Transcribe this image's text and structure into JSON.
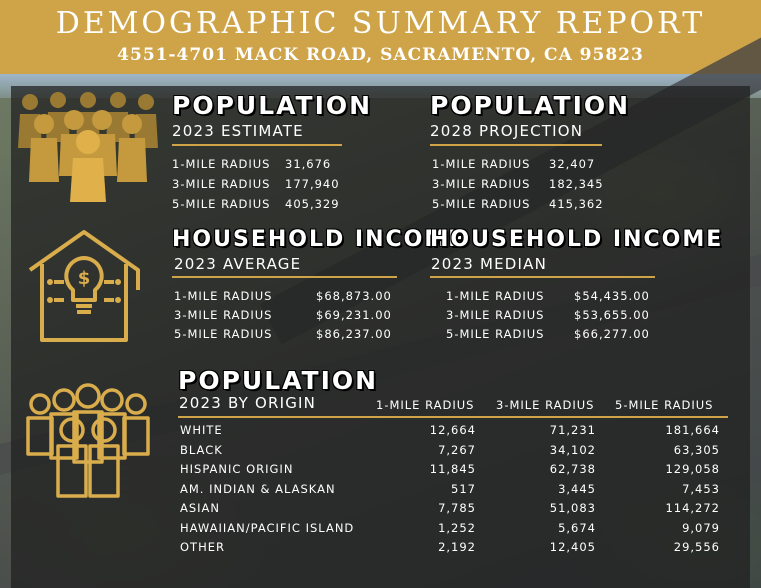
{
  "header": {
    "title": "DEMOGRAPHIC SUMMARY REPORT",
    "address": "4551-4701 MACK ROAD, SACRAMENTO, CA 95823"
  },
  "colors": {
    "accent": "#cfa449",
    "panel": "#1e1e1e",
    "text": "#ffffff"
  },
  "population_estimate": {
    "title": "POPULATION",
    "subtitle": "2023 ESTIMATE",
    "rows": [
      {
        "label": "1-MILE RADIUS",
        "value": "31,676"
      },
      {
        "label": "3-MILE RADIUS",
        "value": "177,940"
      },
      {
        "label": "5-MILE RADIUS",
        "value": "405,329"
      }
    ]
  },
  "population_projection": {
    "title": "POPULATION",
    "subtitle": "2028 PROJECTION",
    "rows": [
      {
        "label": "1-MILE RADIUS",
        "value": "32,407"
      },
      {
        "label": "3-MILE RADIUS",
        "value": "182,345"
      },
      {
        "label": "5-MILE RADIUS",
        "value": "415,362"
      }
    ]
  },
  "income_average": {
    "title": "HOUSEHOLD INCOME",
    "subtitle": "2023 AVERAGE",
    "rows": [
      {
        "label": "1-MILE RADIUS",
        "value": "$68,873.00"
      },
      {
        "label": "3-MILE RADIUS",
        "value": "$69,231.00"
      },
      {
        "label": "5-MILE RADIUS",
        "value": "$86,237.00"
      }
    ]
  },
  "income_median": {
    "title": "HOUSEHOLD INCOME",
    "subtitle": "2023 MEDIAN",
    "rows": [
      {
        "label": "1-MILE RADIUS",
        "value": "$54,435.00"
      },
      {
        "label": "3-MILE RADIUS",
        "value": "$53,655.00"
      },
      {
        "label": "5-MILE RADIUS",
        "value": "$66,277.00"
      }
    ]
  },
  "origin": {
    "title": "POPULATION",
    "subtitle": "2023 BY ORIGIN",
    "columns": [
      "1-MILE RADIUS",
      "3-MILE RADIUS",
      "5-MILE RADIUS"
    ],
    "rows": [
      {
        "label": "WHITE",
        "values": [
          "12,664",
          "71,231",
          "181,664"
        ]
      },
      {
        "label": "BLACK",
        "values": [
          "7,267",
          "34,102",
          "63,305"
        ]
      },
      {
        "label": "HISPANIC ORIGIN",
        "values": [
          "11,845",
          "62,738",
          "129,058"
        ]
      },
      {
        "label": "AM. INDIAN & ALASKAN",
        "values": [
          "517",
          "3,445",
          "7,453"
        ]
      },
      {
        "label": "ASIAN",
        "values": [
          "7,785",
          "51,083",
          "114,272"
        ]
      },
      {
        "label": "HAWAIIAN/PACIFIC ISLAND",
        "values": [
          "1,252",
          "5,674",
          "9,079"
        ]
      },
      {
        "label": "OTHER",
        "values": [
          "2,192",
          "12,405",
          "29,556"
        ]
      }
    ]
  },
  "icons": {
    "population": "people-group-icon",
    "income": "house-lightbulb-dollar-icon",
    "origin": "people-outline-group-icon"
  }
}
